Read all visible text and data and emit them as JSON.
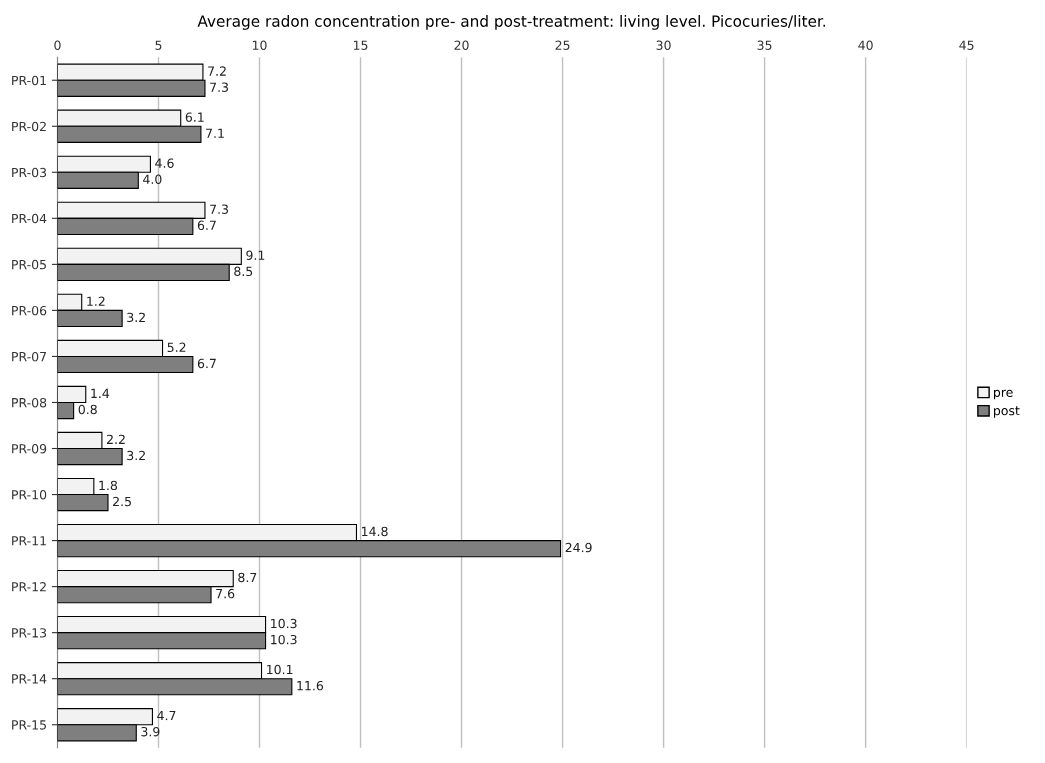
{
  "chart_data": {
    "type": "bar",
    "orientation": "horizontal",
    "title": "Average radon concentration pre- and post-treatment: living level. Picocuries/liter.",
    "categories": [
      "PR-01",
      "PR-02",
      "PR-03",
      "PR-04",
      "PR-05",
      "PR-06",
      "PR-07",
      "PR-08",
      "PR-09",
      "PR-10",
      "PR-11",
      "PR-12",
      "PR-13",
      "PR-14",
      "PR-15"
    ],
    "series": [
      {
        "name": "pre",
        "color": "#f2f2f2",
        "values": [
          7.2,
          6.1,
          4.6,
          7.3,
          9.1,
          1.2,
          5.2,
          1.4,
          2.2,
          1.8,
          14.8,
          8.7,
          10.3,
          10.1,
          4.7
        ],
        "value_labels": [
          "7.2",
          "6.1",
          "4.6",
          "7.3",
          "9.1",
          "1.2",
          "5.2",
          "1.4",
          "2.2",
          "1.8",
          "14.8",
          "8.7",
          "10.3",
          "10.1",
          "4.7"
        ]
      },
      {
        "name": "post",
        "color": "#7f7f7f",
        "values": [
          7.3,
          7.1,
          4.0,
          6.7,
          8.5,
          3.2,
          6.7,
          0.8,
          3.2,
          2.5,
          24.9,
          7.6,
          10.3,
          11.6,
          3.9
        ],
        "value_labels": [
          "7.3",
          "7.1",
          "4.0",
          "6.7",
          "8.5",
          "3.2",
          "6.7",
          "0.8",
          "3.2",
          "2.5",
          "24.9",
          "7.6",
          "10.3",
          "11.6",
          "3.9"
        ]
      }
    ],
    "xlim": [
      0,
      45
    ],
    "xticks": [
      0,
      5,
      10,
      15,
      20,
      25,
      30,
      35,
      40,
      45
    ],
    "grid": "x",
    "legend": "right"
  }
}
